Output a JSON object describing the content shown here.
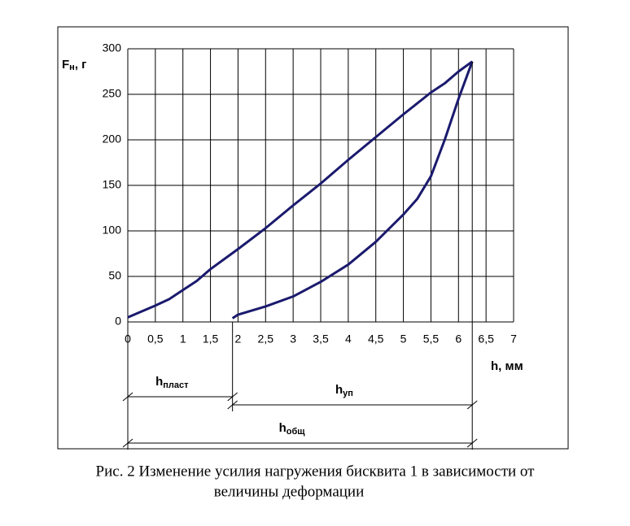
{
  "chart_data": {
    "type": "line",
    "y_label": {
      "base": "F",
      "sub": "н",
      "rest": ", г"
    },
    "x_label": "h, мм",
    "xlim": [
      0,
      7
    ],
    "ylim": [
      0,
      300
    ],
    "xticks": [
      0,
      {
        "value": 0.5,
        "label": "0,5"
      },
      1,
      {
        "value": 1.5,
        "label": "1,5"
      },
      2,
      {
        "value": 2.5,
        "label": "2,5"
      },
      3,
      {
        "value": 3.5,
        "label": "3,5"
      },
      4,
      {
        "value": 4.5,
        "label": "4,5"
      },
      5,
      {
        "value": 5.5,
        "label": "5,5"
      },
      6,
      {
        "value": 6.5,
        "label": "6,5"
      },
      7
    ],
    "yticks": [
      0,
      50,
      100,
      150,
      200,
      250,
      300
    ],
    "grid": true,
    "series": [
      {
        "color": "#1a1a6e",
        "x": [
          0,
          0.5,
          0.75,
          1,
          1.25,
          1.5,
          2,
          2.5,
          3,
          3.5,
          4,
          4.5,
          5,
          5.5,
          5.75,
          6,
          6.25
        ],
        "values": [
          5,
          18,
          25,
          35,
          45,
          58,
          80,
          103,
          128,
          152,
          178,
          203,
          228,
          252,
          262,
          275,
          286
        ]
      },
      {
        "color": "#1a1a6e",
        "x": [
          6.25,
          6,
          5.75,
          5.5,
          5.25,
          5,
          4.5,
          4,
          3.5,
          3,
          2.5,
          2,
          1.9
        ],
        "values": [
          286,
          245,
          200,
          160,
          135,
          118,
          88,
          63,
          44,
          28,
          17,
          8,
          4
        ]
      }
    ],
    "dimensions": [
      {
        "base": "h",
        "sub": "пласт",
        "from": 0,
        "to": 1.9
      },
      {
        "base": "h",
        "sub": "уп",
        "from": 1.9,
        "to": 6.25
      },
      {
        "base": "h",
        "sub": "общ",
        "from": 0,
        "to": 6.25
      }
    ],
    "caption": [
      "Рис. 2 Изменение усилия нагружения бисквита 1 в зависимости от",
      "величины деформации"
    ]
  }
}
